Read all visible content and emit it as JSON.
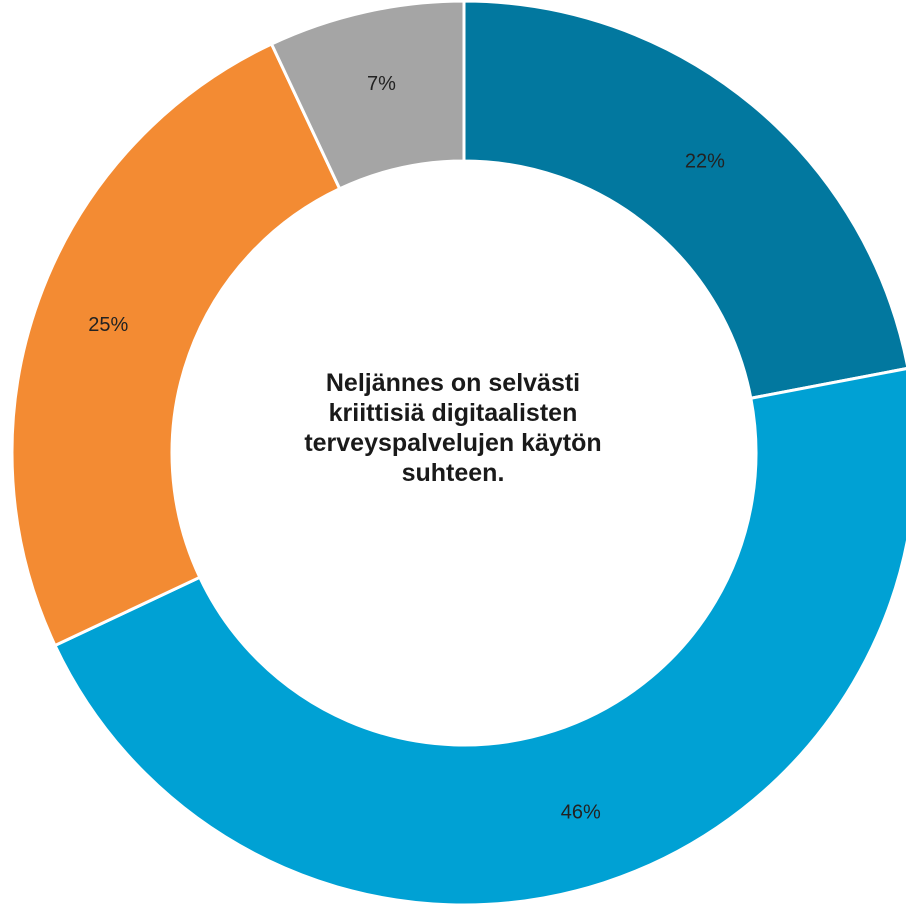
{
  "chart_data": {
    "type": "pie",
    "donut": true,
    "start_angle_deg": 0,
    "direction": "clockwise",
    "slices": [
      {
        "value": 22,
        "label": "22%",
        "color": "#02789F"
      },
      {
        "value": 46,
        "label": "46%",
        "color": "#00A1D4"
      },
      {
        "value": 25,
        "label": "25%",
        "color": "#F38B33"
      },
      {
        "value": 7,
        "label": "7%",
        "color": "#A5A5A5"
      }
    ],
    "center_text": "Neljännes on selvästi kriittisiä digitaalisten terveyspalvelujen käytön suhteen."
  }
}
